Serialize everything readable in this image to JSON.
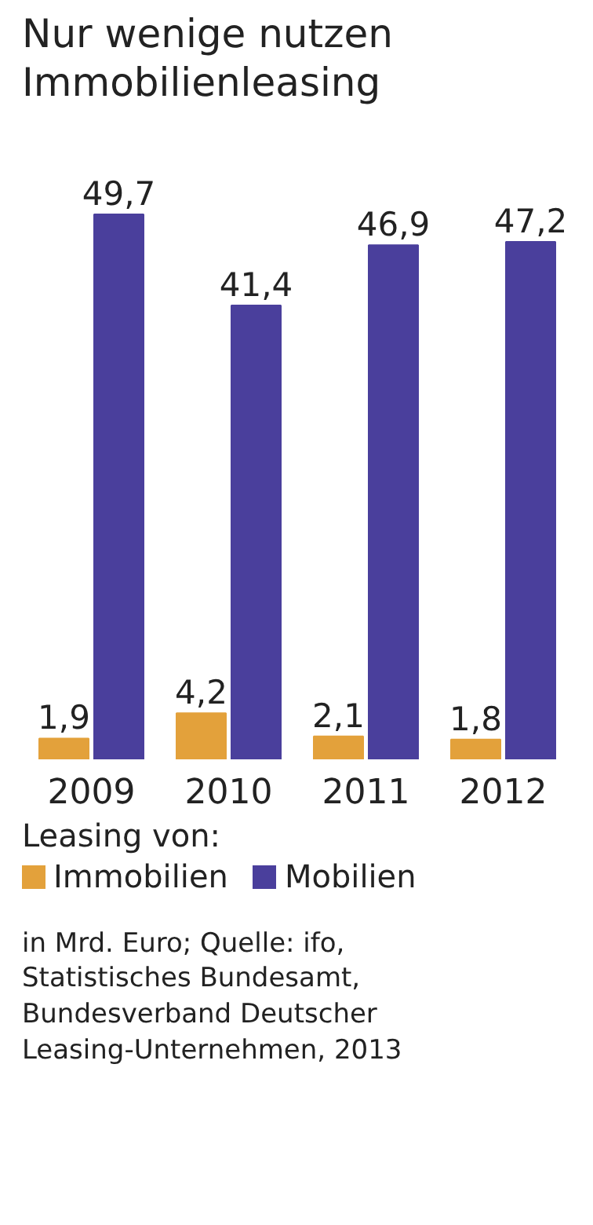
{
  "chart_data": {
    "type": "bar",
    "title": "Nur wenige nutzen\nImmobilienleasing",
    "categories": [
      "2009",
      "2010",
      "2011",
      "2012"
    ],
    "series": [
      {
        "name": "Immobilien",
        "color": "#e3a13b",
        "values": [
          1.9,
          4.2,
          2.1,
          1.8
        ],
        "value_labels": [
          "1,9",
          "4,2",
          "2,1",
          "1,8"
        ]
      },
      {
        "name": "Mobilien",
        "color": "#4a3f9c",
        "values": [
          49.7,
          41.4,
          46.9,
          47.2
        ],
        "value_labels": [
          "49,7",
          "41,4",
          "46,9",
          "47,2"
        ]
      }
    ],
    "legend_title": "Leasing von:",
    "legend": "bottom",
    "annotations": [
      "in Mrd. Euro; Quelle: ifo,\nStatistisches Bundesamt,\nBundesverband Deutscher\nLeasing-Unternehmen, 2013"
    ]
  }
}
